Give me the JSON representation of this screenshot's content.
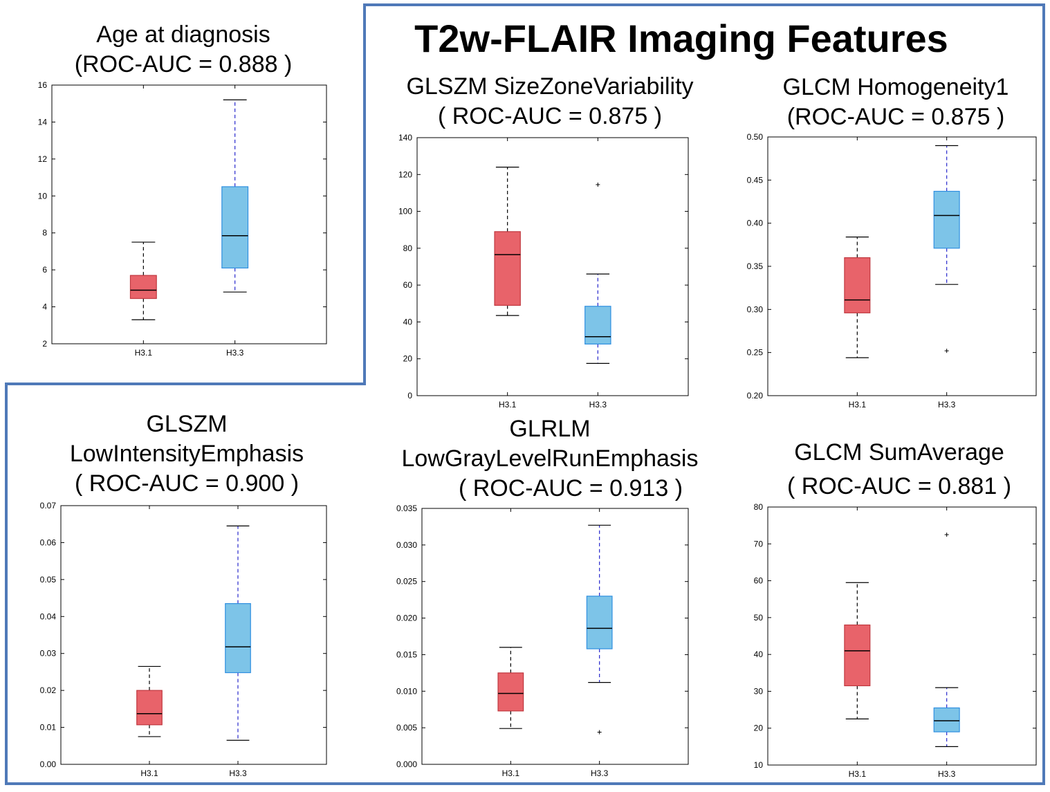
{
  "main_title": "T2w-FLAIR Imaging Features",
  "colors": {
    "group_a": "#e8636a",
    "group_b": "#7dc4e8",
    "frame": "#4f79b8",
    "whisker_b": "#2626cc"
  },
  "chart_data": [
    {
      "type": "boxplot",
      "title_lines": [
        "Age at diagnosis",
        "(ROC-AUC = 0.888 )"
      ],
      "categories": [
        "H3.1",
        "H3.3"
      ],
      "ylim": [
        2,
        16
      ],
      "yticks": [
        "2",
        "4",
        "6",
        "8",
        "10",
        "12",
        "14",
        "16"
      ],
      "boxes": [
        {
          "name": "H3.1",
          "whislo": 3.3,
          "q1": 4.45,
          "median": 4.9,
          "q3": 5.7,
          "whishi": 7.5,
          "fliers": []
        },
        {
          "name": "H3.3",
          "whislo": 4.8,
          "q1": 6.1,
          "median": 7.85,
          "q3": 10.5,
          "whishi": 15.2,
          "fliers": []
        }
      ]
    },
    {
      "type": "boxplot",
      "title_lines": [
        "GLSZM SizeZoneVariability",
        "( ROC-AUC = 0.875 )"
      ],
      "categories": [
        "H3.1",
        "H3.3"
      ],
      "ylim": [
        0,
        140
      ],
      "yticks": [
        "0",
        "20",
        "40",
        "60",
        "80",
        "100",
        "120",
        "140"
      ],
      "boxes": [
        {
          "name": "H3.1",
          "whislo": 43.5,
          "q1": 49,
          "median": 76.5,
          "q3": 89,
          "whishi": 124,
          "fliers": []
        },
        {
          "name": "H3.3",
          "whislo": 17.5,
          "q1": 28,
          "median": 32,
          "q3": 48.5,
          "whishi": 66,
          "fliers": [
            114.5
          ]
        }
      ]
    },
    {
      "type": "boxplot",
      "title_lines": [
        "GLCM Homogeneity1",
        "(ROC-AUC = 0.875 )"
      ],
      "categories": [
        "H3.1",
        "H3.3"
      ],
      "ylim": [
        0.2,
        0.5
      ],
      "yticks": [
        "0.20",
        "0.25",
        "0.30",
        "0.35",
        "0.40",
        "0.45",
        "0.50"
      ],
      "boxes": [
        {
          "name": "H3.1",
          "whislo": 0.244,
          "q1": 0.296,
          "median": 0.311,
          "q3": 0.36,
          "whishi": 0.384,
          "fliers": []
        },
        {
          "name": "H3.3",
          "whislo": 0.329,
          "q1": 0.371,
          "median": 0.409,
          "q3": 0.437,
          "whishi": 0.49,
          "fliers": [
            0.252
          ]
        }
      ]
    },
    {
      "type": "boxplot",
      "title_lines": [
        "GLSZM",
        "LowIntensityEmphasis",
        "( ROC-AUC = 0.900 )"
      ],
      "categories": [
        "H3.1",
        "H3.3"
      ],
      "ylim": [
        0,
        0.07
      ],
      "yticks": [
        "0.00",
        "0.01",
        "0.02",
        "0.03",
        "0.04",
        "0.05",
        "0.06",
        "0.07"
      ],
      "boxes": [
        {
          "name": "H3.1",
          "whislo": 0.0075,
          "q1": 0.0107,
          "median": 0.0137,
          "q3": 0.02,
          "whishi": 0.0265,
          "fliers": []
        },
        {
          "name": "H3.3",
          "whislo": 0.0065,
          "q1": 0.0248,
          "median": 0.0318,
          "q3": 0.0435,
          "whishi": 0.0645,
          "fliers": []
        }
      ]
    },
    {
      "type": "boxplot",
      "title_lines": [
        "GLRLM",
        "LowGrayLevelRunEmphasis",
        "( ROC-AUC = 0.913 )"
      ],
      "categories": [
        "H3.1",
        "H3.3"
      ],
      "ylim": [
        0,
        0.035
      ],
      "yticks": [
        "0.000",
        "0.005",
        "0.010",
        "0.015",
        "0.020",
        "0.025",
        "0.030",
        "0.035"
      ],
      "boxes": [
        {
          "name": "H3.1",
          "whislo": 0.0049,
          "q1": 0.0073,
          "median": 0.0097,
          "q3": 0.0125,
          "whishi": 0.016,
          "fliers": []
        },
        {
          "name": "H3.3",
          "whislo": 0.0112,
          "q1": 0.0158,
          "median": 0.0186,
          "q3": 0.023,
          "whishi": 0.0327,
          "fliers": [
            0.0044
          ]
        }
      ]
    },
    {
      "type": "boxplot",
      "title_lines": [
        "GLCM SumAverage",
        "( ROC-AUC = 0.881 )"
      ],
      "categories": [
        "H3.1",
        "H3.3"
      ],
      "ylim": [
        10,
        80
      ],
      "yticks": [
        "10",
        "20",
        "30",
        "40",
        "50",
        "60",
        "70",
        "80"
      ],
      "boxes": [
        {
          "name": "H3.1",
          "whislo": 22.5,
          "q1": 31.5,
          "median": 41,
          "q3": 48,
          "whishi": 59.5,
          "fliers": []
        },
        {
          "name": "H3.3",
          "whislo": 15,
          "q1": 19,
          "median": 22,
          "q3": 25.5,
          "whishi": 31,
          "fliers": [
            72.5
          ]
        }
      ]
    }
  ]
}
